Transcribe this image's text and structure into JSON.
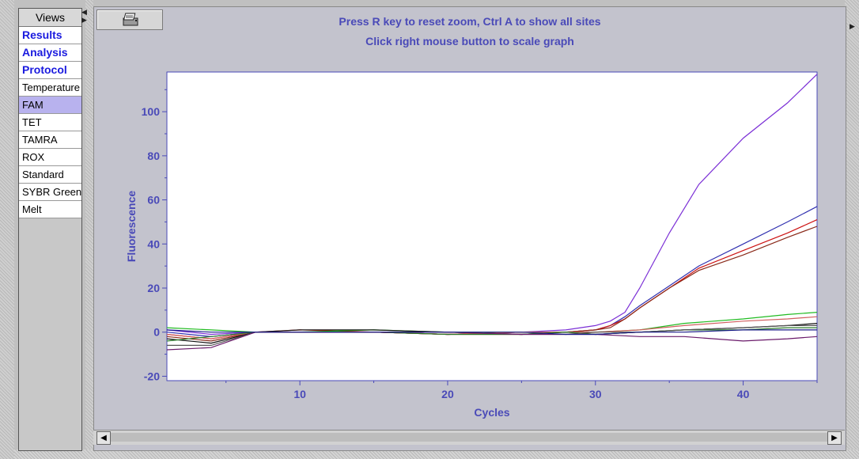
{
  "sidebar": {
    "header": "Views",
    "items": [
      {
        "label": "Results",
        "style": "bold"
      },
      {
        "label": "Analysis",
        "style": "bold"
      },
      {
        "label": "Protocol",
        "style": "bold"
      },
      {
        "label": "Temperature",
        "style": "normal"
      },
      {
        "label": "FAM",
        "style": "selected"
      },
      {
        "label": "TET",
        "style": "normal"
      },
      {
        "label": "TAMRA",
        "style": "normal"
      },
      {
        "label": "ROX",
        "style": "normal"
      },
      {
        "label": "Standard",
        "style": "normal"
      },
      {
        "label": "SYBR Green",
        "style": "normal"
      },
      {
        "label": "Melt",
        "style": "normal"
      }
    ]
  },
  "toolbar": {
    "print_icon": "printer-icon"
  },
  "instructions": {
    "line1": "Press R key to reset zoom, Ctrl A to show all sites",
    "line2": "Click right mouse button to scale graph"
  },
  "colors": {
    "axis": "#4a4ab8",
    "selected": "#b8b2ee",
    "link": "#1a1adf"
  },
  "chart_data": {
    "type": "line",
    "xlabel": "Cycles",
    "ylabel": "Fluorescence",
    "xlim": [
      1,
      45
    ],
    "ylim": [
      -22,
      118
    ],
    "xticks": [
      10,
      20,
      30,
      40
    ],
    "yticks": [
      -20,
      0,
      20,
      40,
      60,
      80,
      100
    ],
    "series": [
      {
        "color": "#7b2fd6",
        "x": [
          1,
          4,
          7,
          10,
          15,
          20,
          25,
          28,
          30,
          31,
          32,
          33,
          35,
          37,
          40,
          43,
          45
        ],
        "y": [
          1,
          -1,
          0,
          0,
          0,
          -1,
          0,
          1,
          3,
          5,
          9,
          20,
          45,
          67,
          88,
          104,
          117
        ]
      },
      {
        "color": "#3030b0",
        "x": [
          1,
          4,
          7,
          10,
          15,
          20,
          25,
          28,
          30,
          31,
          32,
          33,
          35,
          37,
          40,
          43,
          45
        ],
        "y": [
          0,
          -2,
          0,
          0,
          0,
          -1,
          0,
          0,
          1,
          3,
          7,
          12,
          21,
          30,
          40,
          50,
          57
        ]
      },
      {
        "color": "#cc1111",
        "x": [
          1,
          4,
          7,
          10,
          15,
          20,
          25,
          28,
          30,
          31,
          32,
          33,
          35,
          37,
          40,
          43,
          45
        ],
        "y": [
          -1,
          -3,
          0,
          1,
          0,
          -1,
          0,
          0,
          1,
          3,
          6,
          11,
          20,
          29,
          37,
          45,
          51
        ]
      },
      {
        "color": "#8a2a1a",
        "x": [
          1,
          4,
          7,
          10,
          15,
          20,
          25,
          28,
          30,
          31,
          32,
          33,
          35,
          37,
          40,
          43,
          45
        ],
        "y": [
          -2,
          -4,
          0,
          0,
          0,
          -1,
          -1,
          0,
          1,
          2,
          6,
          11,
          20,
          28,
          35,
          43,
          48
        ]
      },
      {
        "color": "#22bb22",
        "x": [
          1,
          4,
          7,
          10,
          15,
          20,
          25,
          28,
          30,
          33,
          36,
          40,
          43,
          45
        ],
        "y": [
          2,
          1,
          0,
          0,
          1,
          0,
          0,
          0,
          0,
          1,
          4,
          6,
          8,
          9
        ]
      },
      {
        "color": "#d06060",
        "x": [
          1,
          4,
          7,
          10,
          15,
          20,
          25,
          28,
          30,
          33,
          36,
          40,
          43,
          45
        ],
        "y": [
          -1,
          -3,
          0,
          0,
          0,
          -1,
          0,
          0,
          0,
          1,
          3,
          5,
          6,
          7
        ]
      },
      {
        "color": "#111111",
        "x": [
          1,
          4,
          7,
          10,
          15,
          20,
          25,
          28,
          30,
          33,
          36,
          40,
          43,
          45
        ],
        "y": [
          -3,
          -5,
          0,
          1,
          1,
          0,
          -1,
          0,
          -1,
          0,
          1,
          2,
          3,
          4
        ]
      },
      {
        "color": "#2a7a2a",
        "x": [
          1,
          4,
          7,
          10,
          15,
          20,
          25,
          28,
          30,
          33,
          36,
          40,
          43,
          45
        ],
        "y": [
          -4,
          -2,
          0,
          0,
          0,
          -1,
          -1,
          0,
          -1,
          0,
          1,
          1,
          2,
          2
        ]
      },
      {
        "color": "#555555",
        "x": [
          1,
          4,
          7,
          10,
          15,
          20,
          25,
          28,
          30,
          33,
          36,
          40,
          43,
          45
        ],
        "y": [
          -6,
          -6,
          0,
          0,
          0,
          0,
          -1,
          -1,
          0,
          0,
          1,
          2,
          3,
          3
        ]
      },
      {
        "color": "#6a1a6a",
        "x": [
          1,
          4,
          7,
          10,
          15,
          20,
          25,
          28,
          30,
          33,
          36,
          40,
          43,
          45
        ],
        "y": [
          -8,
          -7,
          0,
          0,
          0,
          0,
          -1,
          -1,
          -1,
          -2,
          -2,
          -4,
          -3,
          -2
        ]
      },
      {
        "color": "#1a1a8a",
        "x": [
          1,
          4,
          7,
          10,
          15,
          20,
          25,
          28,
          30,
          33,
          36,
          40,
          43,
          45
        ],
        "y": [
          1,
          0,
          0,
          0,
          0,
          0,
          0,
          -1,
          -1,
          0,
          0,
          1,
          1,
          1
        ]
      }
    ]
  }
}
